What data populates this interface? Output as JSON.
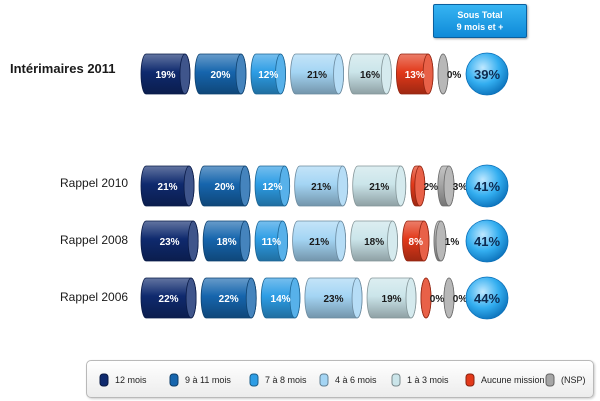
{
  "subtotal_header": {
    "line1": "Sous Total",
    "line2": "9 mois et +"
  },
  "colors": {
    "12 mois": "#0f2a6e",
    "9 à 11 mois": "#1665ad",
    "7 à 8 mois": "#2d9de5",
    "4 à 6 mois": "#a4d5f4",
    "1 à 3 mois": "#cbe5ea",
    "Aucune mission": "#e2391a",
    "(NSP)": "#a6a6a6",
    "subtotal": "#33aef0"
  },
  "chart_data": {
    "type": "bar",
    "stacked": true,
    "unit": "%",
    "categories": [
      "Intérimaires 2011",
      "Rappel 2010",
      "Rappel 2008",
      "Rappel 2006"
    ],
    "series": [
      {
        "name": "12 mois",
        "values": [
          19,
          21,
          23,
          22
        ],
        "labels": [
          "19%",
          "21%",
          "23%",
          "22%"
        ]
      },
      {
        "name": "9 à 11 mois",
        "values": [
          20,
          20,
          18,
          22
        ],
        "labels": [
          "20%",
          "20%",
          "18%",
          "22%"
        ]
      },
      {
        "name": "7 à 8 mois",
        "values": [
          12,
          12,
          11,
          14
        ],
        "labels": [
          "12%",
          "12%",
          "11%",
          "14%"
        ]
      },
      {
        "name": "4 à 6 mois",
        "values": [
          21,
          21,
          21,
          23
        ],
        "labels": [
          "21%",
          "21%",
          "21%",
          "23%"
        ]
      },
      {
        "name": "1 à 3 mois",
        "values": [
          16,
          21,
          18,
          19
        ],
        "labels": [
          "16%",
          "21%",
          "18%",
          "19%"
        ]
      },
      {
        "name": "Aucune mission",
        "values": [
          13,
          2,
          8,
          0
        ],
        "labels": [
          "13%",
          "2%",
          "8%",
          "0%"
        ]
      },
      {
        "name": "(NSP)",
        "values": [
          0,
          3,
          1,
          0
        ],
        "labels": [
          "0%",
          "3%",
          "1%",
          "0%"
        ]
      }
    ],
    "subtotal": {
      "values": [
        39,
        41,
        41,
        44
      ],
      "labels": [
        "39%",
        "41%",
        "41%",
        "44%"
      ]
    },
    "legend": [
      "12 mois",
      "9 à 11 mois",
      "7 à 8 mois",
      "4 à 6 mois",
      "1 à 3 mois",
      "Aucune mission",
      "(NSP)"
    ],
    "legend_position": "bottom"
  }
}
